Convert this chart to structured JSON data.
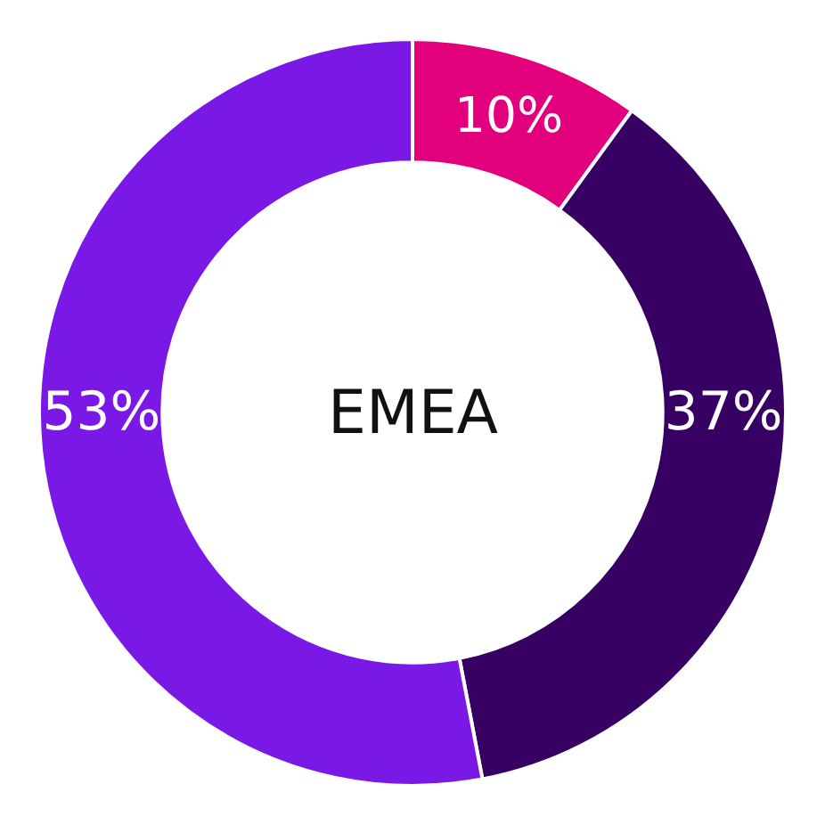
{
  "chart_data": {
    "type": "donut",
    "title": "EMEA",
    "categories": [
      null,
      null,
      null
    ],
    "values": [
      10,
      37,
      53
    ],
    "colors": [
      "#e2007d",
      "#370063",
      "#7a18e6"
    ],
    "value_labels": [
      "10%",
      "37%",
      "53%"
    ],
    "legend": false
  }
}
